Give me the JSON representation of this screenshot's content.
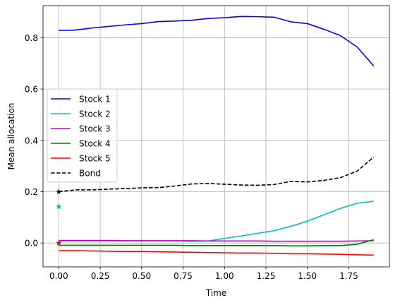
{
  "chart_data": {
    "type": "line",
    "xlabel": "Time",
    "ylabel": "Mean allocation",
    "xlim": [
      -0.095,
      1.995
    ],
    "ylim": [
      -0.093,
      0.925
    ],
    "grid": true,
    "legend_position": "center-left",
    "xticks": [
      0.0,
      0.25,
      0.5,
      0.75,
      1.0,
      1.25,
      1.5,
      1.75
    ],
    "xtick_labels": [
      "0.00",
      "0.25",
      "0.50",
      "0.75",
      "1.00",
      "1.25",
      "1.50",
      "1.75"
    ],
    "yticks": [
      0.0,
      0.2,
      0.4,
      0.6,
      0.8
    ],
    "ytick_labels": [
      "0.0",
      "0.2",
      "0.4",
      "0.6",
      "0.8"
    ],
    "x": [
      0.0,
      0.1,
      0.2,
      0.3,
      0.4,
      0.5,
      0.6,
      0.7,
      0.8,
      0.9,
      1.0,
      1.1,
      1.2,
      1.3,
      1.4,
      1.5,
      1.6,
      1.7,
      1.8,
      1.9
    ],
    "series": [
      {
        "name": "Stock 1",
        "color": "#0000ff",
        "style": "solid",
        "values": [
          0.828,
          0.83,
          0.838,
          0.844,
          0.85,
          0.855,
          0.863,
          0.865,
          0.868,
          0.875,
          0.878,
          0.883,
          0.882,
          0.88,
          0.862,
          0.855,
          0.833,
          0.808,
          0.764,
          0.69
        ],
        "marker": {
          "x": 0.0,
          "y": 0.142,
          "shape": "star"
        }
      },
      {
        "name": "Stock 2",
        "color": "#00bfbf",
        "style": "solid",
        "values": [
          0.008,
          0.008,
          0.008,
          0.008,
          0.008,
          0.008,
          0.008,
          0.008,
          0.007,
          0.008,
          0.018,
          0.027,
          0.038,
          0.048,
          0.065,
          0.085,
          0.11,
          0.135,
          0.155,
          0.163
        ],
        "marker": {
          "x": 0.0,
          "y": 0.142,
          "shape": "star"
        }
      },
      {
        "name": "Stock 3",
        "color": "#bf00bf",
        "style": "solid",
        "values": [
          0.01,
          0.01,
          0.01,
          0.01,
          0.009,
          0.009,
          0.009,
          0.009,
          0.009,
          0.008,
          0.008,
          0.008,
          0.008,
          0.007,
          0.007,
          0.007,
          0.007,
          0.007,
          0.008,
          0.009
        ],
        "marker": {
          "x": 0.0,
          "y": 0.0,
          "shape": "star"
        }
      },
      {
        "name": "Stock 4",
        "color": "#008000",
        "style": "solid",
        "values": [
          -0.009,
          -0.009,
          -0.009,
          -0.009,
          -0.009,
          -0.009,
          -0.009,
          -0.009,
          -0.01,
          -0.01,
          -0.01,
          -0.01,
          -0.01,
          -0.01,
          -0.011,
          -0.011,
          -0.01,
          -0.01,
          -0.005,
          0.013
        ],
        "marker": {
          "x": 0.0,
          "y": 0.0,
          "shape": "star"
        }
      },
      {
        "name": "Stock 5",
        "color": "#ff0000",
        "style": "solid",
        "values": [
          -0.03,
          -0.03,
          -0.031,
          -0.032,
          -0.033,
          -0.033,
          -0.034,
          -0.035,
          -0.036,
          -0.037,
          -0.038,
          -0.039,
          -0.039,
          -0.04,
          -0.042,
          -0.042,
          -0.043,
          -0.044,
          -0.046,
          -0.047
        ],
        "marker": {
          "x": 0.0,
          "y": 0.0,
          "shape": "star"
        }
      },
      {
        "name": "Bond",
        "color": "#000000",
        "style": "dashed",
        "values": [
          0.2,
          0.207,
          0.207,
          0.21,
          0.212,
          0.215,
          0.216,
          0.222,
          0.23,
          0.232,
          0.229,
          0.226,
          0.225,
          0.228,
          0.24,
          0.238,
          0.244,
          0.255,
          0.28,
          0.335
        ],
        "marker": {
          "x": 0.0,
          "y": 0.2,
          "shape": "star"
        }
      }
    ]
  }
}
